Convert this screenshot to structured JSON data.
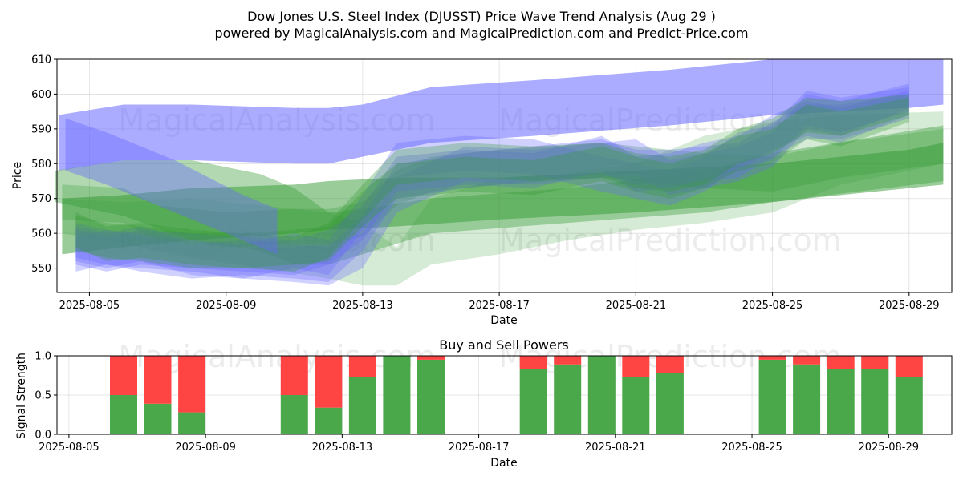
{
  "title_line1": "Dow Jones U.S. Steel Index (DJUSST) Price Wave Trend Analysis (Aug 29 )",
  "title_line2": "powered by MagicalAnalysis.com and MagicalPrediction.com and Predict-Price.com",
  "watermarks": [
    "MagicalAnalysis.com",
    "MagicalPrediction.com"
  ],
  "colors": {
    "blue": "#6666ff",
    "green": "#339933",
    "buy": "#4aa84a",
    "sell": "#ff4444"
  },
  "chart_data": [
    {
      "type": "area",
      "title": "",
      "xlabel": "Date",
      "ylabel": "Price",
      "x_start": "2025-08-05",
      "xlim_days": [
        -0.95,
        25.25
      ],
      "ylim": [
        543,
        610
      ],
      "xticks": [
        {
          "day": 0,
          "label": "2025-08-05"
        },
        {
          "day": 4,
          "label": "2025-08-09"
        },
        {
          "day": 8,
          "label": "2025-08-13"
        },
        {
          "day": 12,
          "label": "2025-08-17"
        },
        {
          "day": 16,
          "label": "2025-08-21"
        },
        {
          "day": 20,
          "label": "2025-08-25"
        },
        {
          "day": 24,
          "label": "2025-08-29"
        }
      ],
      "yticks": [
        550,
        560,
        570,
        580,
        590,
        600,
        610
      ],
      "grid": true,
      "bands": [
        {
          "color": "blue",
          "opacity": 0.55,
          "x": [
            -0.9,
            1,
            3,
            6,
            7,
            8,
            10,
            13,
            17,
            20,
            24,
            25
          ],
          "upper": [
            594,
            597,
            597,
            596,
            596,
            597,
            602,
            604,
            607,
            610,
            610,
            610
          ],
          "lower": [
            578,
            581,
            581,
            580,
            580,
            582,
            586,
            588,
            591,
            594,
            596,
            597
          ]
        },
        {
          "color": "green",
          "opacity": 0.38,
          "x": [
            -1,
            1,
            3,
            5,
            6,
            7,
            8,
            10,
            14,
            18,
            20,
            25
          ],
          "upper": [
            578,
            581,
            581,
            577,
            573,
            566,
            567,
            570,
            573,
            578,
            583,
            591
          ],
          "lower": [
            569,
            565,
            558,
            555,
            551,
            551,
            554,
            560,
            563,
            566,
            569,
            575
          ]
        },
        {
          "color": "green",
          "opacity": 0.5,
          "x": [
            -0.8,
            1,
            3,
            6,
            7,
            9,
            12,
            16,
            20,
            22,
            24,
            25
          ],
          "upper": [
            570,
            571,
            573,
            574,
            575,
            576,
            576,
            578,
            580,
            582,
            584,
            586
          ],
          "lower": [
            554,
            556,
            558,
            560,
            561,
            562,
            564,
            566,
            569,
            571,
            573,
            574
          ]
        },
        {
          "color": "green",
          "opacity": 0.28,
          "x": [
            -0.8,
            1,
            2,
            4,
            6,
            7,
            8,
            9,
            10,
            12,
            15,
            18,
            20,
            22,
            25
          ],
          "upper": [
            574,
            573,
            568,
            566,
            567,
            567,
            569,
            578,
            582,
            584,
            586,
            583,
            582,
            586,
            590
          ]
        },
        {
          "color": "green",
          "opacity": 0.2,
          "x": [
            -0.8,
            1,
            3,
            5,
            7,
            8,
            9,
            10,
            12,
            14,
            16,
            18,
            20,
            22,
            25
          ],
          "upper": [
            570,
            569,
            570,
            568,
            566,
            563,
            556,
            570,
            576,
            577,
            580,
            588,
            592,
            594,
            595
          ],
          "lower": [
            560,
            557,
            553,
            550,
            547,
            545,
            545,
            551,
            554,
            558,
            561,
            563,
            566,
            574,
            580
          ]
        },
        {
          "color": "blue",
          "opacity": 0.3,
          "x": [
            -0.4,
            0.5,
            1.5,
            3,
            4.5,
            6,
            7,
            8,
            9,
            11,
            13,
            15,
            16,
            17,
            18,
            19,
            20,
            21,
            22,
            24
          ],
          "upper": [
            563,
            561,
            560,
            558,
            556,
            556,
            557,
            560,
            576,
            585,
            584,
            586,
            587,
            581,
            583,
            585,
            589,
            600,
            598,
            603
          ],
          "lower": [
            553,
            551,
            550,
            549,
            547,
            546,
            545,
            550,
            566,
            575,
            574,
            576,
            577,
            571,
            573,
            575,
            579,
            590,
            588,
            596
          ]
        },
        {
          "color": "blue",
          "opacity": 0.3,
          "x": [
            -0.4,
            0.5,
            1.5,
            3,
            4.5,
            6,
            7,
            8,
            9,
            11,
            13,
            15,
            16,
            17,
            18,
            19,
            20,
            21,
            22,
            24
          ],
          "upper": [
            561,
            559,
            561,
            560,
            559,
            558,
            561,
            568,
            582,
            584,
            583,
            588,
            582,
            583,
            586,
            588,
            594,
            598,
            596,
            601
          ],
          "lower": [
            551,
            549,
            551,
            550,
            549,
            548,
            551,
            558,
            572,
            574,
            573,
            578,
            572,
            573,
            576,
            578,
            584,
            588,
            586,
            594
          ]
        },
        {
          "color": "blue",
          "opacity": 0.3,
          "x": [
            -0.4,
            0.5,
            1.5,
            3,
            4.5,
            6,
            7,
            8,
            9,
            11,
            13,
            15,
            16,
            17,
            18,
            19,
            20,
            21,
            22,
            24
          ],
          "upper": [
            562,
            560,
            562,
            558,
            557,
            560,
            558,
            571,
            586,
            588,
            587,
            582,
            580,
            578,
            582,
            589,
            591,
            601,
            599,
            602
          ],
          "lower": [
            552,
            550,
            552,
            548,
            547,
            550,
            548,
            561,
            576,
            578,
            577,
            572,
            570,
            568,
            572,
            579,
            581,
            591,
            589,
            595
          ]
        },
        {
          "color": "blue",
          "opacity": 0.3,
          "x": [
            -0.4,
            0.5,
            1.5,
            3,
            4.5,
            6,
            7,
            8,
            9,
            11,
            13,
            15,
            16,
            17,
            18,
            19,
            20,
            21,
            22,
            24
          ],
          "upper": [
            559,
            561,
            559,
            557,
            558,
            557,
            556,
            565,
            580,
            583,
            585,
            587,
            584,
            584,
            585,
            586,
            592,
            597,
            597,
            600
          ],
          "lower": [
            549,
            551,
            549,
            547,
            548,
            547,
            546,
            555,
            570,
            573,
            575,
            577,
            574,
            574,
            575,
            576,
            582,
            587,
            587,
            593
          ]
        },
        {
          "color": "green",
          "opacity": 0.3,
          "x": [
            -0.4,
            0.5,
            1.5,
            3,
            4.5,
            6,
            7,
            8,
            9,
            11,
            13,
            15,
            16,
            17,
            18,
            19,
            20,
            21,
            22,
            24
          ],
          "upper": [
            565,
            563,
            562,
            560,
            560,
            561,
            562,
            572,
            580,
            582,
            581,
            585,
            582,
            580,
            583,
            588,
            590,
            597,
            595,
            599
          ],
          "lower": [
            555,
            553,
            552,
            550,
            550,
            551,
            552,
            562,
            570,
            572,
            571,
            575,
            572,
            570,
            573,
            578,
            580,
            587,
            585,
            592
          ]
        },
        {
          "color": "green",
          "opacity": 0.3,
          "x": [
            -0.4,
            0.5,
            1.5,
            3,
            4.5,
            6,
            7,
            8,
            9,
            11,
            13,
            15,
            16,
            17,
            18,
            19,
            20,
            21,
            22,
            24
          ],
          "upper": [
            566,
            562,
            563,
            561,
            560,
            559,
            563,
            574,
            584,
            586,
            585,
            586,
            583,
            582,
            584,
            590,
            593,
            599,
            598,
            600
          ],
          "lower": [
            556,
            552,
            553,
            551,
            550,
            549,
            553,
            564,
            574,
            576,
            575,
            576,
            573,
            572,
            574,
            580,
            583,
            589,
            588,
            594
          ]
        },
        {
          "color": "blue",
          "opacity": 0.4,
          "x": [
            -0.7,
            0.5,
            1.5,
            2.5,
            3.5,
            4.5,
            5.5
          ],
          "upper": [
            593,
            589,
            585,
            581,
            576,
            571,
            567
          ],
          "lower": [
            578,
            574,
            570,
            566,
            562,
            558,
            554
          ]
        }
      ]
    },
    {
      "type": "bar",
      "title": "Buy and Sell Powers",
      "xlabel": "Date",
      "ylabel": "Signal Strength",
      "ylim": [
        0,
        1.0
      ],
      "xlim_days": [
        -0.95,
        25.25
      ],
      "xticks": [
        {
          "day": 0,
          "label": "2025-08-05"
        },
        {
          "day": 4,
          "label": "2025-08-09"
        },
        {
          "day": 8,
          "label": "2025-08-13"
        },
        {
          "day": 12,
          "label": "2025-08-17"
        },
        {
          "day": 16,
          "label": "2025-08-21"
        },
        {
          "day": 20,
          "label": "2025-08-25"
        },
        {
          "day": 24,
          "label": "2025-08-29"
        }
      ],
      "yticks": [
        {
          "value": 0.0,
          "label": "0.0"
        },
        {
          "value": 0.5,
          "label": "0.5"
        },
        {
          "value": 1.0,
          "label": "1.0"
        }
      ],
      "days": [
        1,
        2,
        3,
        6,
        7,
        8,
        9,
        10,
        13,
        14,
        15,
        16,
        17,
        20,
        21,
        22,
        23,
        24
      ],
      "buy": [
        0.5,
        0.39,
        0.28,
        0.5,
        0.34,
        0.73,
        1.0,
        0.95,
        0.83,
        0.89,
        1.0,
        0.73,
        0.78,
        0.95,
        0.89,
        0.83,
        0.83,
        0.73
      ],
      "sell": [
        0.5,
        0.61,
        0.72,
        0.5,
        0.66,
        0.27,
        0.0,
        0.05,
        0.17,
        0.11,
        0.0,
        0.27,
        0.22,
        0.05,
        0.11,
        0.17,
        0.17,
        0.27
      ]
    }
  ]
}
